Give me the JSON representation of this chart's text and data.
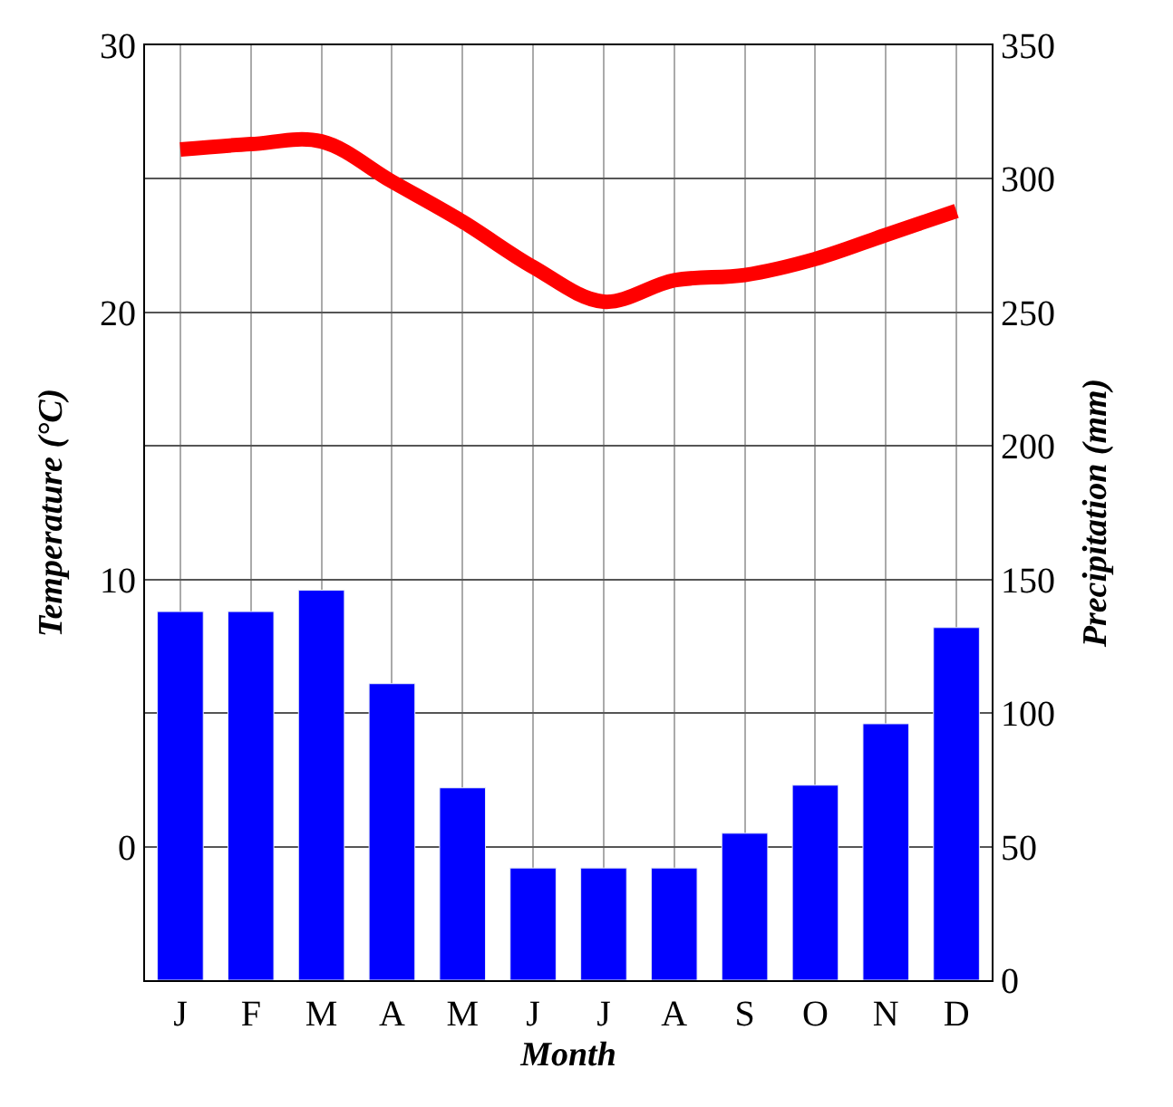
{
  "chart_data": {
    "type": "bar",
    "xlabel": "Month",
    "ylabel": "Temperature (°C)",
    "y2label": "Precipitation (mm)",
    "categories": [
      "J",
      "F",
      "M",
      "A",
      "M",
      "J",
      "J",
      "A",
      "S",
      "O",
      "N",
      "D"
    ],
    "series": [
      {
        "axis": "y2",
        "color": "#0000ff",
        "values": [
          138,
          138,
          146,
          111,
          72,
          42,
          42,
          42,
          55,
          73,
          96,
          132
        ]
      },
      {
        "type": "line",
        "axis": "y",
        "color": "#ff0000",
        "values": [
          26.1,
          26.3,
          26.4,
          24.9,
          23.4,
          21.7,
          20.4,
          21.2,
          21.4,
          22.0,
          22.9,
          23.8
        ]
      }
    ],
    "ylim": [
      -5,
      30
    ],
    "yticks": [
      0,
      10,
      20,
      30
    ],
    "y2lim": [
      0,
      350
    ],
    "y2ticks": [
      0,
      50,
      100,
      150,
      200,
      250,
      300,
      350
    ],
    "grid": true
  }
}
